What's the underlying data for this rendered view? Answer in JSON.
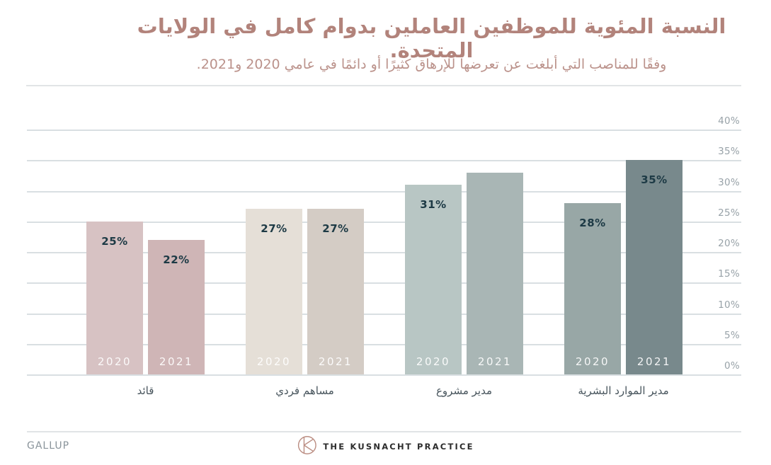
{
  "header": {
    "title": "النسبة المئوية للموظفين العاملين بدوام كامل في الولايات المتحدة.",
    "subtitle": "وفقًا للمناصب التي أبلغت عن تعرضها للإرهاق كثيرًا أو دائمًا في عامي 2020 و2021."
  },
  "chart_data": {
    "type": "bar",
    "title": "النسبة المئوية للموظفين العاملين بدوام كامل في الولايات المتحدة.",
    "subtitle": "وفقًا للمناصب التي أبلغت عن تعرضها للإرهاق كثيرًا أو دائمًا في عامي 2020 و2021.",
    "categories": [
      "قائد",
      "مساهم فردي",
      "مدير مشروع",
      "مدير الموارد البشرية"
    ],
    "series": [
      {
        "name": "2020",
        "values": [
          25,
          27,
          31,
          28
        ],
        "value_labels": [
          "25%",
          "27%",
          "31%",
          "28%"
        ],
        "colors": [
          "#d7c2c3",
          "#e5dfd7",
          "#b8c6c4",
          "#98a7a6"
        ]
      },
      {
        "name": "2021",
        "values": [
          22,
          27,
          33,
          35
        ],
        "value_labels": [
          "22%",
          "27%",
          "",
          "35%"
        ],
        "colors": [
          "#cfb5b6",
          "#d4ccc5",
          "#a9b6b5",
          "#78898c"
        ]
      }
    ],
    "y_ticks": [
      {
        "value": 40,
        "label": "40%"
      },
      {
        "value": 35,
        "label": "35%"
      },
      {
        "value": 30,
        "label": "30%"
      },
      {
        "value": 25,
        "label": "25%"
      },
      {
        "value": 20,
        "label": "20%"
      },
      {
        "value": 15,
        "label": "15%"
      },
      {
        "value": 10,
        "label": "10%"
      },
      {
        "value": 5,
        "label": "5%"
      },
      {
        "value": 0,
        "label": "0%"
      }
    ],
    "ylim": [
      0,
      40
    ],
    "grid": true,
    "axis_side": "right",
    "legend": "years shown as labels inside bar bottoms"
  },
  "colors": {
    "title": "#b2837b",
    "subtitle": "#bb928b",
    "gridline": "#d9dfe2",
    "separator": "#e1e4e6",
    "axis_label": "#98a2a8",
    "category_label": "#47545c",
    "value_label": "#1d3a45",
    "year_label": "rgba(255,255,255,0.9)",
    "gallup_label": "#8a949b",
    "brand_text": "#2d2d2d",
    "logo_stroke": "#bb8d82"
  },
  "footer": {
    "gallup": "GALLUP",
    "brand": "THE KUSNACHT PRACTICE",
    "logo_icon": "kusnacht-circle-k-icon"
  }
}
